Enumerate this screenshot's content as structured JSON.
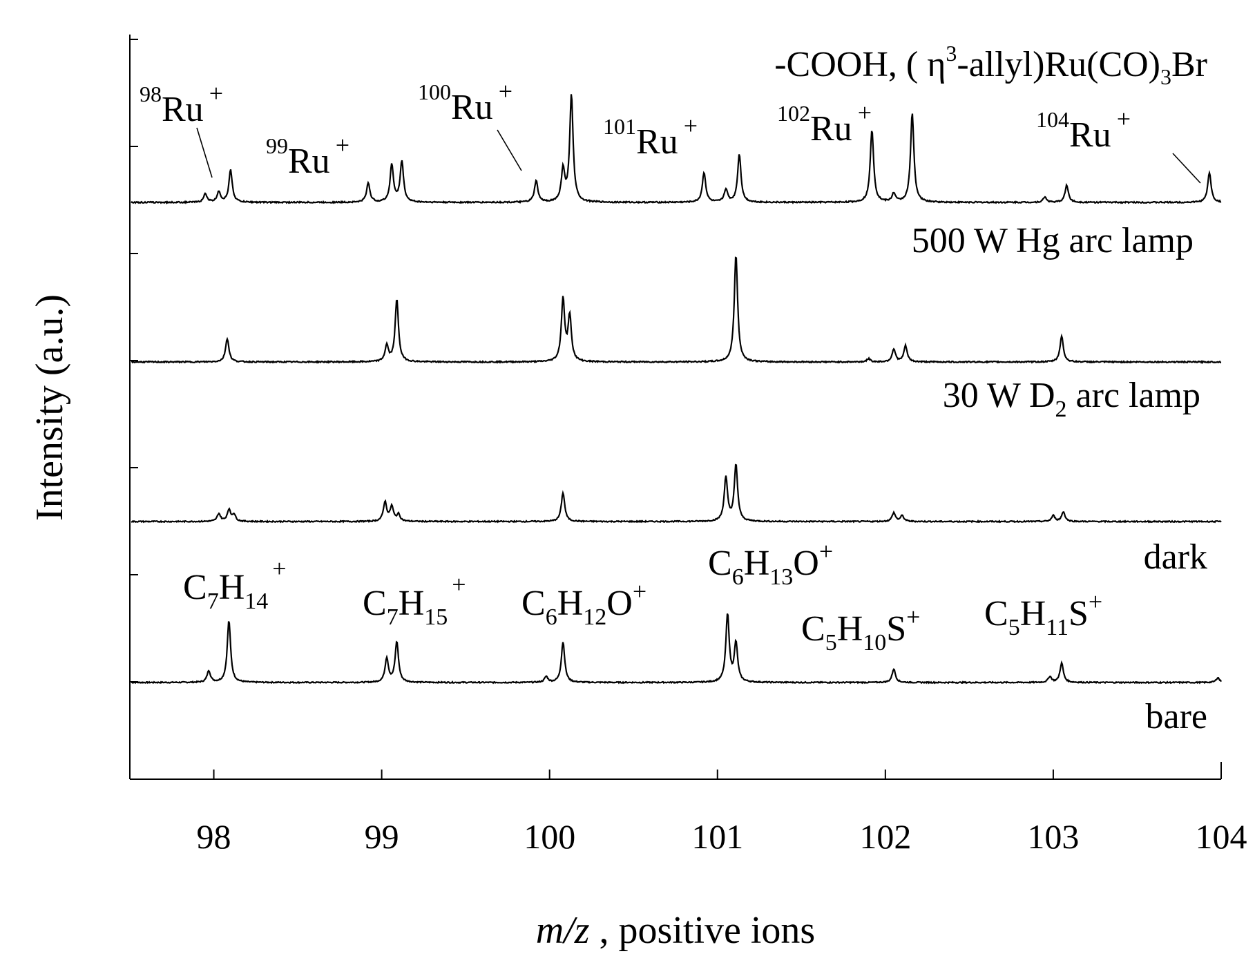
{
  "chart_data": {
    "type": "line",
    "title": "",
    "xlabel_italic": "m/z",
    "xlabel_rest": " , positive ions",
    "ylabel": "Intensity (a.u.)",
    "xlim": [
      97.5,
      104
    ],
    "x_ticks": [
      98,
      99,
      100,
      101,
      102,
      103,
      104
    ],
    "y_ticks_count": 7,
    "grid": false,
    "series": [
      {
        "name": "bare",
        "peaks": [
          {
            "x": 97.97,
            "h": 0.12
          },
          {
            "x": 98.09,
            "h": 0.64
          },
          {
            "x": 99.03,
            "h": 0.25
          },
          {
            "x": 99.09,
            "h": 0.42
          },
          {
            "x": 99.98,
            "h": 0.06
          },
          {
            "x": 100.08,
            "h": 0.42
          },
          {
            "x": 101.06,
            "h": 0.7
          },
          {
            "x": 101.11,
            "h": 0.4
          },
          {
            "x": 102.05,
            "h": 0.14
          },
          {
            "x": 102.98,
            "h": 0.06
          },
          {
            "x": 103.05,
            "h": 0.2
          },
          {
            "x": 103.98,
            "h": 0.05
          }
        ]
      },
      {
        "name": "dark",
        "peaks": [
          {
            "x": 98.03,
            "h": 0.08
          },
          {
            "x": 98.09,
            "h": 0.12
          },
          {
            "x": 98.12,
            "h": 0.07
          },
          {
            "x": 99.02,
            "h": 0.2
          },
          {
            "x": 99.06,
            "h": 0.15
          },
          {
            "x": 99.1,
            "h": 0.07
          },
          {
            "x": 100.08,
            "h": 0.3
          },
          {
            "x": 101.05,
            "h": 0.45
          },
          {
            "x": 101.11,
            "h": 0.58
          },
          {
            "x": 102.05,
            "h": 0.09
          },
          {
            "x": 102.1,
            "h": 0.06
          },
          {
            "x": 103.0,
            "h": 0.06
          },
          {
            "x": 103.06,
            "h": 0.1
          }
        ]
      },
      {
        "name": "30 W D2 arc lamp",
        "peaks": [
          {
            "x": 98.08,
            "h": 0.22
          },
          {
            "x": 99.03,
            "h": 0.15
          },
          {
            "x": 99.09,
            "h": 0.58
          },
          {
            "x": 100.08,
            "h": 0.58
          },
          {
            "x": 100.12,
            "h": 0.42
          },
          {
            "x": 101.11,
            "h": 1.0
          },
          {
            "x": 101.9,
            "h": 0.03
          },
          {
            "x": 102.05,
            "h": 0.12
          },
          {
            "x": 102.12,
            "h": 0.15
          },
          {
            "x": 103.05,
            "h": 0.24
          }
        ]
      },
      {
        "name": "500 W Hg arc lamp",
        "peaks": [
          {
            "x": 97.95,
            "h": 0.08
          },
          {
            "x": 98.03,
            "h": 0.1
          },
          {
            "x": 98.1,
            "h": 0.3
          },
          {
            "x": 98.92,
            "h": 0.18
          },
          {
            "x": 99.06,
            "h": 0.35
          },
          {
            "x": 99.12,
            "h": 0.38
          },
          {
            "x": 99.92,
            "h": 0.2
          },
          {
            "x": 100.08,
            "h": 0.3
          },
          {
            "x": 100.13,
            "h": 1.0
          },
          {
            "x": 100.92,
            "h": 0.28
          },
          {
            "x": 101.05,
            "h": 0.12
          },
          {
            "x": 101.13,
            "h": 0.45
          },
          {
            "x": 101.92,
            "h": 0.68
          },
          {
            "x": 102.05,
            "h": 0.08
          },
          {
            "x": 102.16,
            "h": 0.83
          },
          {
            "x": 102.95,
            "h": 0.05
          },
          {
            "x": 103.08,
            "h": 0.16
          },
          {
            "x": 103.93,
            "h": 0.28
          }
        ]
      }
    ],
    "annotations": {
      "bare_label": "bare",
      "dark_label": "dark",
      "d2_label": "30 W D",
      "d2_sub": "2",
      "d2_rest": " arc lamp",
      "hg_label": "500 W Hg arc lamp",
      "title_label": "-COOH, ( η",
      "title_sup": "3",
      "title_mid": "-allyl)Ru(CO)",
      "title_sub": "3",
      "title_end": "Br",
      "ru_species": "Ru",
      "plus": "+",
      "ru_isotopes": [
        "98",
        "99",
        "100",
        "101",
        "102",
        "104"
      ],
      "fragments": {
        "c7h14": {
          "c": "C",
          "n1": "7",
          "h": "H",
          "n2": "14",
          "charge": "+"
        },
        "c7h15": {
          "c": "C",
          "n1": "7",
          "h": "H",
          "n2": "15",
          "charge": "+"
        },
        "c6h12o": {
          "c": "C",
          "n1": "6",
          "h": "H",
          "n2": "12",
          "tail": "O",
          "charge": "+"
        },
        "c6h13o": {
          "c": "C",
          "n1": "6",
          "h": "H",
          "n2": "13",
          "tail": "O",
          "charge": "+"
        },
        "c5h10s": {
          "c": "C",
          "n1": "5",
          "h": "H",
          "n2": "10",
          "tail": "S",
          "charge": "+"
        },
        "c5h11s": {
          "c": "C",
          "n1": "5",
          "h": "H",
          "n2": "11",
          "tail": "S",
          "charge": "+"
        }
      }
    }
  }
}
